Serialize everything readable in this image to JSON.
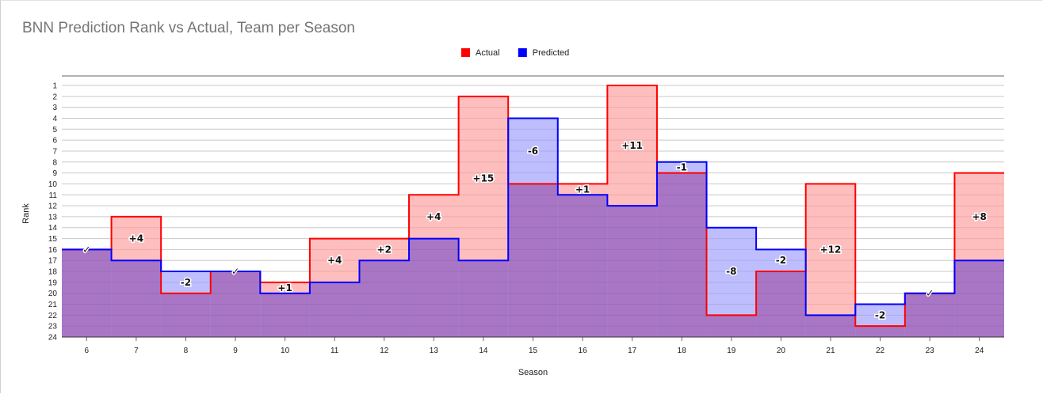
{
  "chart_data": {
    "type": "area",
    "title": "BNN Prediction Rank vs Actual, Team per Season",
    "xlabel": "Season",
    "ylabel": "Rank",
    "ylim": [
      1,
      24
    ],
    "y_inverted": true,
    "legend_position": "top-center",
    "x": [
      6,
      7,
      8,
      9,
      10,
      11,
      12,
      13,
      14,
      15,
      16,
      17,
      18,
      19,
      20,
      21,
      22,
      23,
      24
    ],
    "series": [
      {
        "name": "Actual",
        "color": "#ff0000",
        "fill": "#ffb3b3",
        "values": [
          16,
          13,
          20,
          18,
          19,
          15,
          15,
          11,
          2,
          10,
          10,
          1,
          9,
          22,
          18,
          10,
          23,
          20,
          9
        ]
      },
      {
        "name": "Predicted",
        "color": "#0000ff",
        "fill": "#b3b3ff",
        "values": [
          16,
          17,
          18,
          18,
          20,
          19,
          17,
          15,
          17,
          4,
          11,
          12,
          8,
          14,
          16,
          22,
          21,
          20,
          17
        ]
      }
    ],
    "annotations": [
      "✓",
      "+4",
      "-2",
      "✓",
      "+1",
      "+4",
      "+2",
      "+4",
      "+15",
      "-6",
      "+1",
      "+11",
      "-1",
      "-8",
      "-2",
      "+12",
      "-2",
      "✓",
      "+8"
    ],
    "grid": true
  }
}
